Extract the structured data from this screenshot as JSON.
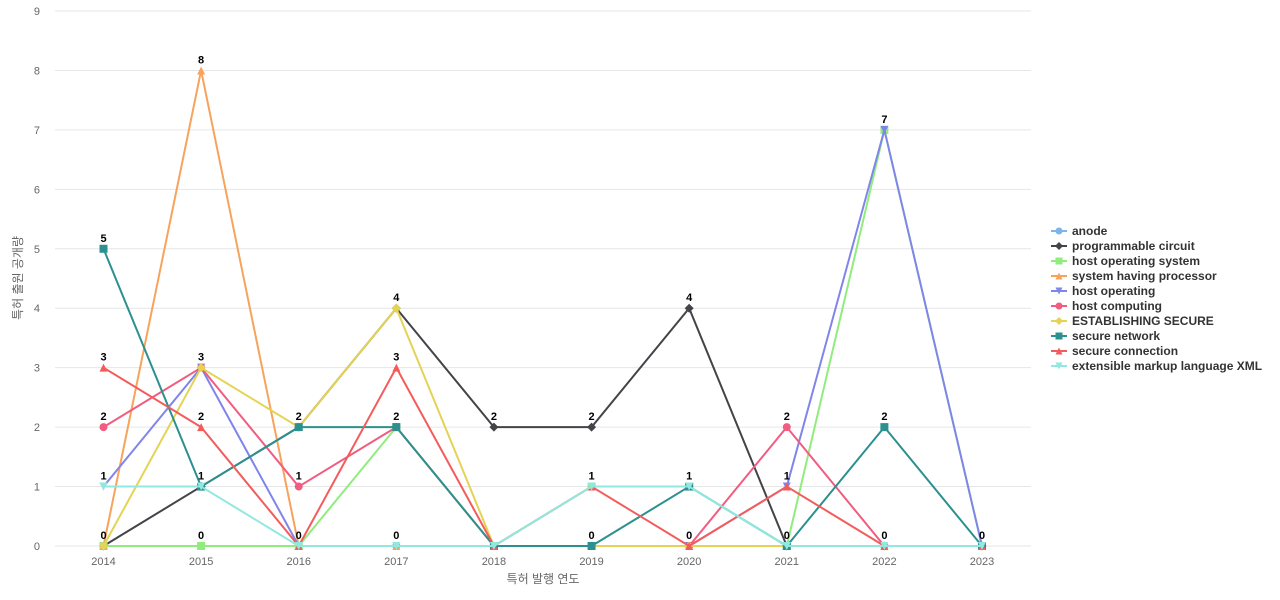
{
  "chart_data": {
    "type": "line",
    "title": "",
    "xlabel": "특허 발행 연도",
    "ylabel": "특허 출원 공개량",
    "ylim": [
      0,
      9
    ],
    "yticks": [
      0,
      1,
      2,
      3,
      4,
      5,
      6,
      7,
      8,
      9
    ],
    "grid": true,
    "legend_position": "right",
    "categories": [
      "2014",
      "2015",
      "2016",
      "2017",
      "2018",
      "2019",
      "2020",
      "2021",
      "2022",
      "2023"
    ],
    "series": [
      {
        "name": "anode",
        "color": "#7cb5ec",
        "marker": "circle",
        "values": [
          0,
          0,
          0,
          0,
          0,
          0,
          0,
          0,
          0,
          0
        ]
      },
      {
        "name": "programmable circuit",
        "color": "#434348",
        "marker": "diamond",
        "values": [
          0,
          1,
          2,
          4,
          2,
          2,
          4,
          0,
          0,
          0
        ]
      },
      {
        "name": "host operating system",
        "color": "#90ed7d",
        "marker": "square",
        "values": [
          0,
          0,
          0,
          2,
          0,
          1,
          1,
          0,
          7,
          0
        ]
      },
      {
        "name": "system having processor",
        "color": "#f7a35c",
        "marker": "triangle",
        "values": [
          0,
          8,
          0,
          0,
          0,
          0,
          0,
          0,
          0,
          0
        ]
      },
      {
        "name": "host operating",
        "color": "#8085e9",
        "marker": "triangle-down",
        "values": [
          1,
          3,
          0,
          0,
          0,
          0,
          0,
          1,
          7,
          0
        ]
      },
      {
        "name": "host computing",
        "color": "#f15c80",
        "marker": "circle",
        "values": [
          2,
          3,
          1,
          2,
          0,
          0,
          0,
          2,
          0,
          0
        ]
      },
      {
        "name": "ESTABLISHING SECURE",
        "color": "#e4d354",
        "marker": "diamond",
        "values": [
          0,
          3,
          2,
          4,
          0,
          0,
          0,
          0,
          0,
          0
        ]
      },
      {
        "name": "secure network",
        "color": "#2b908f",
        "marker": "square",
        "values": [
          5,
          1,
          2,
          2,
          0,
          0,
          1,
          0,
          2,
          0
        ]
      },
      {
        "name": "secure connection",
        "color": "#f45b5b",
        "marker": "triangle",
        "values": [
          3,
          2,
          0,
          3,
          0,
          1,
          0,
          1,
          0,
          0
        ]
      },
      {
        "name": "extensible markup language XML",
        "color": "#91e8e1",
        "marker": "triangle-down",
        "values": [
          1,
          1,
          0,
          0,
          0,
          1,
          1,
          0,
          0,
          0
        ]
      }
    ],
    "data_labels": [
      {
        "x": "2014",
        "value": 5
      },
      {
        "x": "2014",
        "value": 3
      },
      {
        "x": "2014",
        "value": 2
      },
      {
        "x": "2014",
        "value": 1
      },
      {
        "x": "2014",
        "value": 0
      },
      {
        "x": "2015",
        "value": 8
      },
      {
        "x": "2015",
        "value": 3
      },
      {
        "x": "2015",
        "value": 2
      },
      {
        "x": "2015",
        "value": 1
      },
      {
        "x": "2015",
        "value": 0
      },
      {
        "x": "2016",
        "value": 2
      },
      {
        "x": "2016",
        "value": 1
      },
      {
        "x": "2016",
        "value": 0
      },
      {
        "x": "2017",
        "value": 4
      },
      {
        "x": "2017",
        "value": 3
      },
      {
        "x": "2017",
        "value": 2
      },
      {
        "x": "2017",
        "value": 0
      },
      {
        "x": "2018",
        "value": 2
      },
      {
        "x": "2019",
        "value": 2
      },
      {
        "x": "2019",
        "value": 1
      },
      {
        "x": "2019",
        "value": 0
      },
      {
        "x": "2020",
        "value": 4
      },
      {
        "x": "2020",
        "value": 1
      },
      {
        "x": "2020",
        "value": 0
      },
      {
        "x": "2021",
        "value": 2
      },
      {
        "x": "2021",
        "value": 1
      },
      {
        "x": "2021",
        "value": 0
      },
      {
        "x": "2022",
        "value": 7
      },
      {
        "x": "2022",
        "value": 2
      },
      {
        "x": "2022",
        "value": 0
      },
      {
        "x": "2023",
        "value": 0
      }
    ]
  }
}
